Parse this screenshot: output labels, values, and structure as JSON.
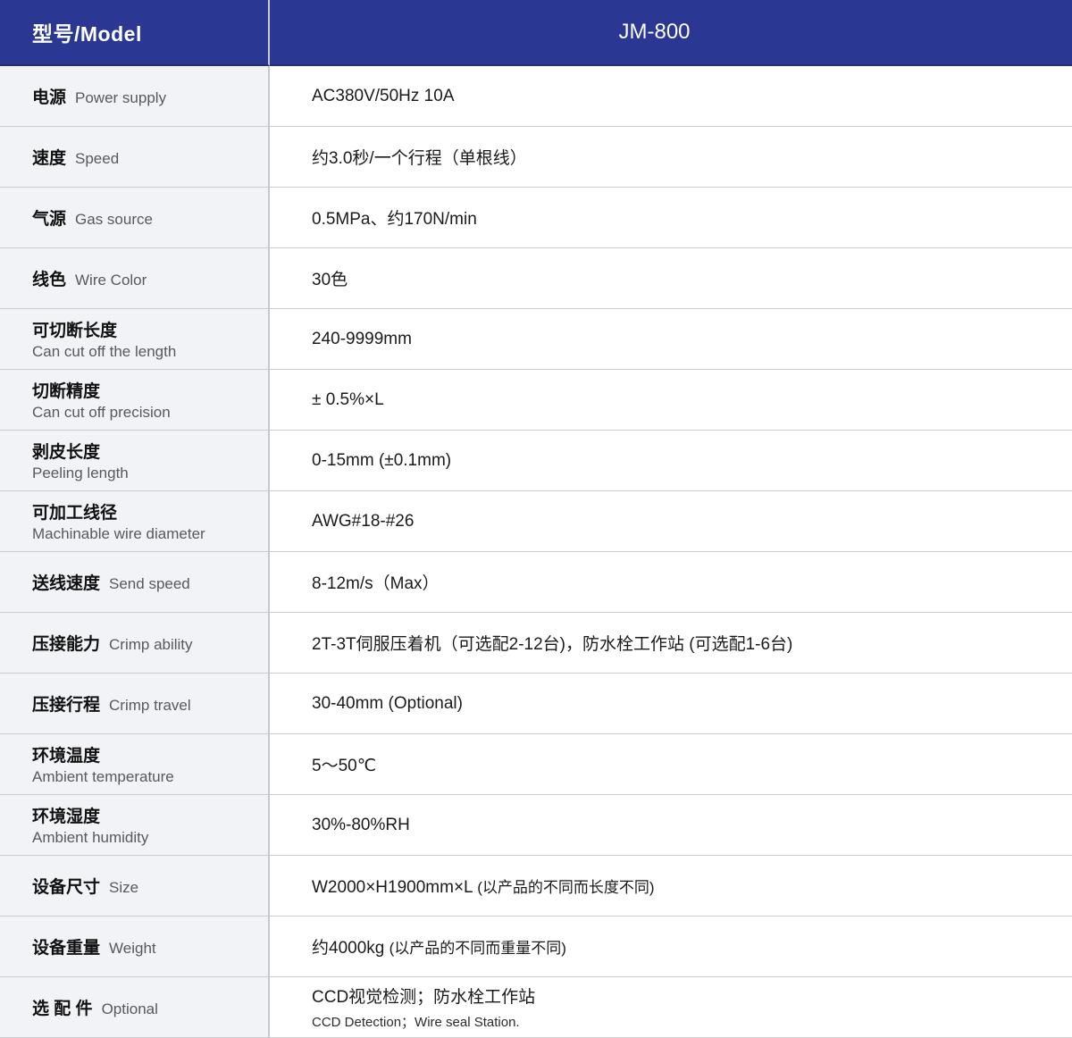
{
  "header": {
    "model_label": "型号/Model",
    "model_value": "JM-800"
  },
  "colors": {
    "header_bg": "#2a3793",
    "header_text": "#ffffff",
    "label_column_bg": "#f2f3f6",
    "grid_line": "#c9cbd0",
    "label_en_text": "#58595b",
    "body_text": "#1a1a1a"
  },
  "rows": [
    {
      "zh": "电源",
      "en": "Power supply",
      "value": "AC380V/50Hz 10A"
    },
    {
      "zh": "速度",
      "en": "Speed",
      "value": "约3.0秒/一个行程（单根线）"
    },
    {
      "zh": "气源",
      "en": "Gas source",
      "value": "0.5MPa、约170N/min"
    },
    {
      "zh": "线色",
      "en": "Wire Color",
      "value": "30色"
    },
    {
      "zh": "可切断长度",
      "en": "Can cut off the length",
      "value": "240-9999mm"
    },
    {
      "zh": "切断精度",
      "en": "Can cut off precision",
      "value": "± 0.5%×L"
    },
    {
      "zh": "剥皮长度",
      "en": "Peeling length",
      "value": "0-15mm (±0.1mm)"
    },
    {
      "zh": "可加工线径",
      "en": "Machinable wire diameter",
      "value": "AWG#18-#26"
    },
    {
      "zh": "送线速度",
      "en": "Send speed",
      "value": "8-12m/s（Max）"
    },
    {
      "zh": "压接能力",
      "en": "Crimp ability",
      "value": "2T-3T伺服压着机（可选配2-12台)，防水栓工作站 (可选配1-6台)"
    },
    {
      "zh": "压接行程",
      "en": "Crimp travel",
      "value": "30-40mm (Optional)"
    },
    {
      "zh": "环境温度",
      "en": "Ambient temperature",
      "value": "5～50℃"
    },
    {
      "zh": "环境湿度",
      "en": "Ambient humidity",
      "value": "30%-80%RH"
    },
    {
      "zh": "设备尺寸",
      "en": "Size",
      "value": "W2000×H1900mm×L",
      "value_note": "(以产品的不同而长度不同)"
    },
    {
      "zh": "设备重量",
      "en": "Weight",
      "value": "约4000kg",
      "value_note": "(以产品的不同而重量不同)"
    },
    {
      "zh": "选 配 件",
      "en": "Optional",
      "value": "CCD视觉检测；防水栓工作站",
      "value_sub": "CCD Detection；Wire seal Station."
    }
  ]
}
